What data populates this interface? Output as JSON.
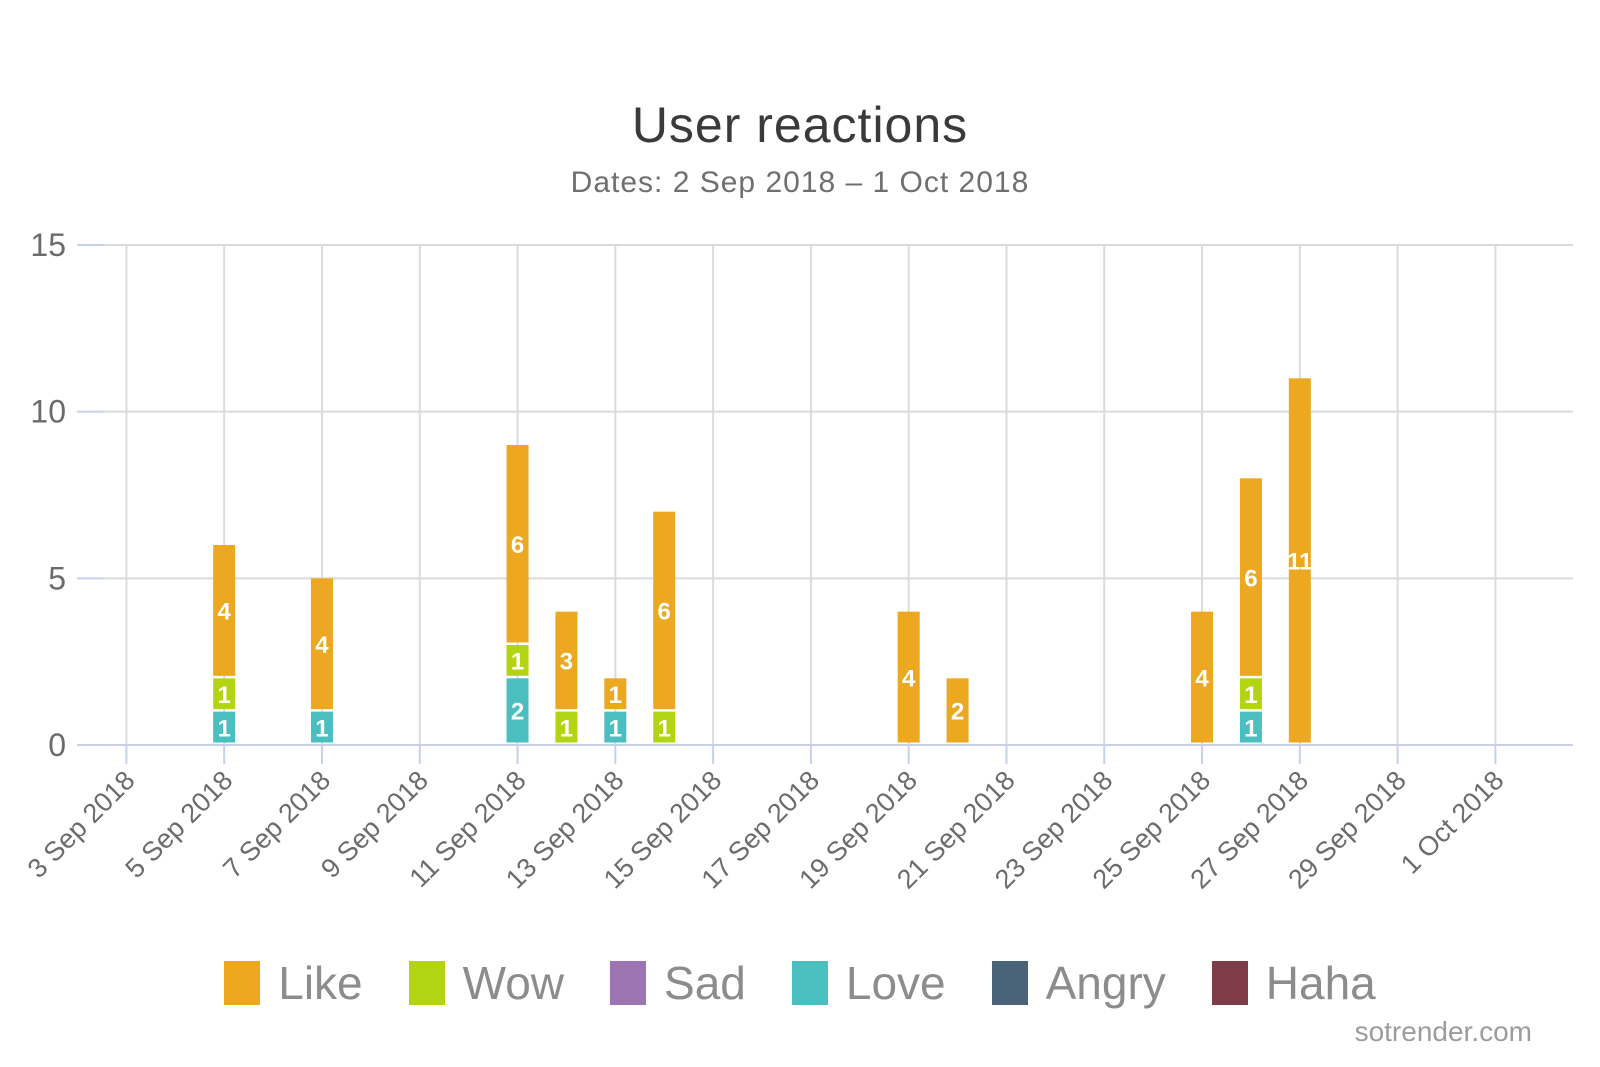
{
  "page": {
    "title": "User reactions",
    "subtitle": "Dates: 2 Sep 2018 – 1 Oct 2018"
  },
  "footer": {
    "watermark": "sotrender.com"
  },
  "colors": {
    "grid": "#dbdbdb",
    "axis": "#c6d0e7",
    "axis_text": "#6b6b6b",
    "bar_value_text": "#ffffff",
    "title_text": "#3a3a3a",
    "subtitle_text": "#6f6f6f",
    "legend_text": "#8c8c8c"
  },
  "legend": {
    "items": [
      {
        "label": "Like",
        "color": "#eba820"
      },
      {
        "label": "Wow",
        "color": "#b3d413"
      },
      {
        "label": "Sad",
        "color": "#9b74b1"
      },
      {
        "label": "Love",
        "color": "#4bbec0"
      },
      {
        "label": "Angry",
        "color": "#4a6378"
      },
      {
        "label": "Haha",
        "color": "#7e3b48"
      }
    ]
  },
  "chart_data": {
    "type": "bar",
    "stacked": true,
    "title": "User reactions",
    "subtitle": "Dates: 2 Sep 2018 – 1 Oct 2018",
    "xlabel": "",
    "ylabel": "",
    "ylim": [
      0,
      15
    ],
    "yticks": [
      0,
      5,
      10,
      15
    ],
    "grid": true,
    "legend_position": "bottom",
    "x_start_date": "3 Sep 2018",
    "x_end_date": "1 Oct 2018",
    "x_total_days": 29,
    "x_tick_every_days": 2,
    "x_tick_labels": [
      "3 Sep 2018",
      "5 Sep 2018",
      "7 Sep 2018",
      "9 Sep 2018",
      "11 Sep 2018",
      "13 Sep 2018",
      "15 Sep 2018",
      "17 Sep 2018",
      "19 Sep 2018",
      "21 Sep 2018",
      "23 Sep 2018",
      "25 Sep 2018",
      "27 Sep 2018",
      "29 Sep 2018",
      "1 Oct 2018"
    ],
    "series_names": [
      "Like",
      "Wow",
      "Sad",
      "Love",
      "Angry",
      "Haha"
    ],
    "series_colors": {
      "Like": "#eba820",
      "Wow": "#b3d413",
      "Sad": "#9b74b1",
      "Love": "#4bbec0",
      "Angry": "#4a6378",
      "Haha": "#7e3b48"
    },
    "bars": [
      {
        "date": "5 Sep 2018",
        "day_index": 2,
        "total": 6,
        "segments": [
          {
            "series": "Love",
            "value": 1
          },
          {
            "series": "Wow",
            "value": 1
          },
          {
            "series": "Like",
            "value": 4
          }
        ]
      },
      {
        "date": "7 Sep 2018",
        "day_index": 4,
        "total": 5,
        "segments": [
          {
            "series": "Love",
            "value": 1
          },
          {
            "series": "Like",
            "value": 4
          }
        ]
      },
      {
        "date": "11 Sep 2018",
        "day_index": 8,
        "total": 9,
        "segments": [
          {
            "series": "Love",
            "value": 2
          },
          {
            "series": "Wow",
            "value": 1
          },
          {
            "series": "Like",
            "value": 6
          }
        ]
      },
      {
        "date": "12 Sep 2018",
        "day_index": 9,
        "total": 4,
        "segments": [
          {
            "series": "Wow",
            "value": 1
          },
          {
            "series": "Like",
            "value": 3
          }
        ]
      },
      {
        "date": "13 Sep 2018",
        "day_index": 10,
        "total": 2,
        "segments": [
          {
            "series": "Love",
            "value": 1
          },
          {
            "series": "Like",
            "value": 1
          }
        ]
      },
      {
        "date": "14 Sep 2018",
        "day_index": 11,
        "total": 7,
        "segments": [
          {
            "series": "Wow",
            "value": 1
          },
          {
            "series": "Like",
            "value": 6
          }
        ]
      },
      {
        "date": "19 Sep 2018",
        "day_index": 16,
        "total": 4,
        "segments": [
          {
            "series": "Like",
            "value": 4
          }
        ]
      },
      {
        "date": "20 Sep 2018",
        "day_index": 17,
        "total": 2,
        "segments": [
          {
            "series": "Like",
            "value": 2
          }
        ]
      },
      {
        "date": "25 Sep 2018",
        "day_index": 22,
        "total": 4,
        "segments": [
          {
            "series": "Like",
            "value": 4
          }
        ]
      },
      {
        "date": "26 Sep 2018",
        "day_index": 23,
        "total": 8,
        "segments": [
          {
            "series": "Love",
            "value": 1
          },
          {
            "series": "Wow",
            "value": 1
          },
          {
            "series": "Like",
            "value": 6
          }
        ]
      },
      {
        "date": "27 Sep 2018",
        "day_index": 24,
        "total": 11,
        "segments": [
          {
            "series": "Like",
            "value": 11
          }
        ]
      }
    ]
  }
}
